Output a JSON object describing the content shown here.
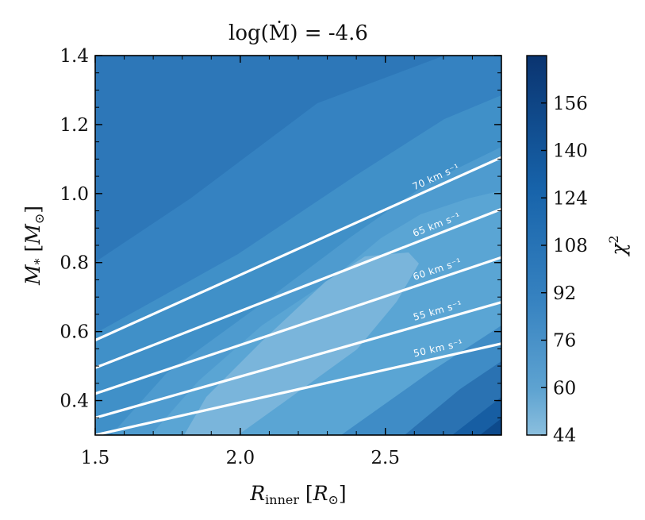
{
  "chart_data": {
    "type": "contour",
    "title": "log(Ṁ) = -4.6",
    "xlabel": "R_inner [R_⊙]",
    "ylabel": "M_* [M_⊙]",
    "colorbar_label": "χ²",
    "xlim": [
      1.5,
      2.9
    ],
    "ylim": [
      0.3,
      1.4
    ],
    "x_ticks": [
      1.5,
      2.0,
      2.5
    ],
    "y_ticks": [
      0.4,
      0.6,
      0.8,
      1.0,
      1.2,
      1.4
    ],
    "x_tick_labels": [
      "1.5",
      "2.0",
      "2.5"
    ],
    "y_tick_labels": [
      "0.4",
      "0.6",
      "0.8",
      "1.0",
      "1.2",
      "1.4"
    ],
    "colorbar_range": [
      44,
      172
    ],
    "colorbar_ticks": [
      44,
      60,
      76,
      92,
      108,
      124,
      140,
      156
    ],
    "colorbar_tick_labels": [
      "44",
      "60",
      "76",
      "92",
      "108",
      "124",
      "140",
      "156"
    ],
    "colormap": "Blues",
    "velocity_lines": [
      {
        "label": "50 km s⁻¹",
        "x": [
          1.5,
          2.9
        ],
        "y": [
          0.3,
          0.565
        ]
      },
      {
        "label": "55 km s⁻¹",
        "x": [
          1.5,
          2.9
        ],
        "y": [
          0.35,
          0.685
        ]
      },
      {
        "label": "60 km s⁻¹",
        "x": [
          1.5,
          2.9
        ],
        "y": [
          0.42,
          0.815
        ]
      },
      {
        "label": "65 km s⁻¹",
        "x": [
          1.5,
          2.9
        ],
        "y": [
          0.495,
          0.955
        ]
      },
      {
        "label": "70 km s⁻¹",
        "x": [
          1.5,
          2.9
        ],
        "y": [
          0.575,
          1.105
        ]
      }
    ]
  }
}
